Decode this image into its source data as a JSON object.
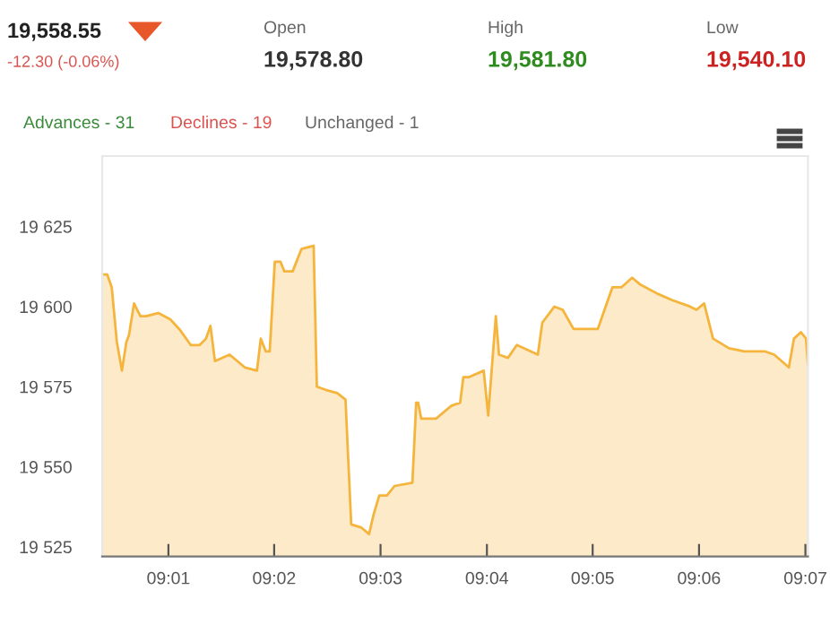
{
  "chart_data": {
    "type": "area",
    "annotations": [
      "19,558.55",
      "-12.30 (-0.06%)",
      "Open",
      "19,578.80",
      "High",
      "19,581.80",
      "Low",
      "19,540.10",
      "Advances - 31",
      "Declines - 19",
      "Unchanged - 1"
    ],
    "x": [
      9.0063,
      9.0071,
      9.0078,
      9.0086,
      9.0094,
      9.0101,
      9.0105,
      9.0113,
      9.0123,
      9.0132,
      9.0151,
      9.017,
      9.0184,
      9.0202,
      9.0216,
      9.0226,
      9.0233,
      9.024,
      9.0263,
      9.0287,
      9.0306,
      9.0312,
      9.032,
      9.0326,
      9.0334,
      9.0343,
      9.0349,
      9.0362,
      9.0376,
      9.0395,
      9.04,
      9.0414,
      9.0432,
      9.0445,
      9.0454,
      9.047,
      9.0482,
      9.0489,
      9.0498,
      9.051,
      9.0522,
      9.055,
      9.0556,
      9.0559,
      9.0564,
      9.0587,
      9.0611,
      9.0625,
      9.063,
      9.0639,
      9.0662,
      9.0669,
      9.0681,
      9.0686,
      9.07,
      9.0714,
      9.0747,
      9.0754,
      9.0773,
      9.0786,
      9.0803,
      9.0822,
      9.0841,
      9.0864,
      9.0878,
      9.0895,
      9.0907,
      9.0935,
      9.0958,
      9.0986,
      9.0996,
      9.1008,
      9.1022,
      9.1047,
      9.1071,
      9.1104,
      9.1118,
      9.1141,
      9.1149,
      9.116,
      9.1168,
      9.1171
    ],
    "series": [
      {
        "color": "#f5b43c",
        "values": [
          19610,
          19610,
          19606,
          19589,
          19580,
          19589,
          19591,
          19601,
          19597,
          19597,
          19598,
          19596,
          19593,
          19588,
          19588,
          19590,
          19594,
          19583,
          19585,
          19581,
          19580,
          19590,
          19586,
          19586,
          19614,
          19614,
          19611,
          19611,
          19618,
          19619,
          19575,
          19574,
          19573,
          19571,
          19532,
          19531,
          19529,
          19535,
          19541,
          19541,
          19544,
          19545,
          19570,
          19570,
          19565,
          19565,
          19569,
          19570,
          19578,
          19578,
          19580,
          19566,
          19597,
          19585,
          19584,
          19588,
          19585,
          19595,
          19600,
          19599,
          19593,
          19593,
          19593,
          19606,
          19606,
          19609,
          19607,
          19604,
          19602,
          19600,
          19599,
          19601,
          19590,
          19587,
          19586,
          19586,
          19585,
          19581,
          19590,
          19592,
          19590,
          19582
        ]
      }
    ],
    "xlim": [
      9.0063,
      9.1171
    ],
    "ylim": [
      19522,
      19647
    ],
    "xticks": [
      {
        "value": 9.0167,
        "label": "09:01"
      },
      {
        "value": 9.0333,
        "label": "09:02"
      },
      {
        "value": 9.05,
        "label": "09:03"
      },
      {
        "value": 9.0667,
        "label": "09:04"
      },
      {
        "value": 9.0833,
        "label": "09:05"
      },
      {
        "value": 9.1,
        "label": "09:06"
      },
      {
        "value": 9.1167,
        "label": "09:07"
      }
    ],
    "yticks": [
      {
        "value": 19525,
        "label": "19 525"
      },
      {
        "value": 19550,
        "label": "19 550"
      },
      {
        "value": 19575,
        "label": "19 575"
      },
      {
        "value": 19600,
        "label": "19 600"
      },
      {
        "value": 19625,
        "label": "19 625"
      }
    ],
    "grid": false,
    "legend": false,
    "marker": "none",
    "line_style": "solid"
  }
}
